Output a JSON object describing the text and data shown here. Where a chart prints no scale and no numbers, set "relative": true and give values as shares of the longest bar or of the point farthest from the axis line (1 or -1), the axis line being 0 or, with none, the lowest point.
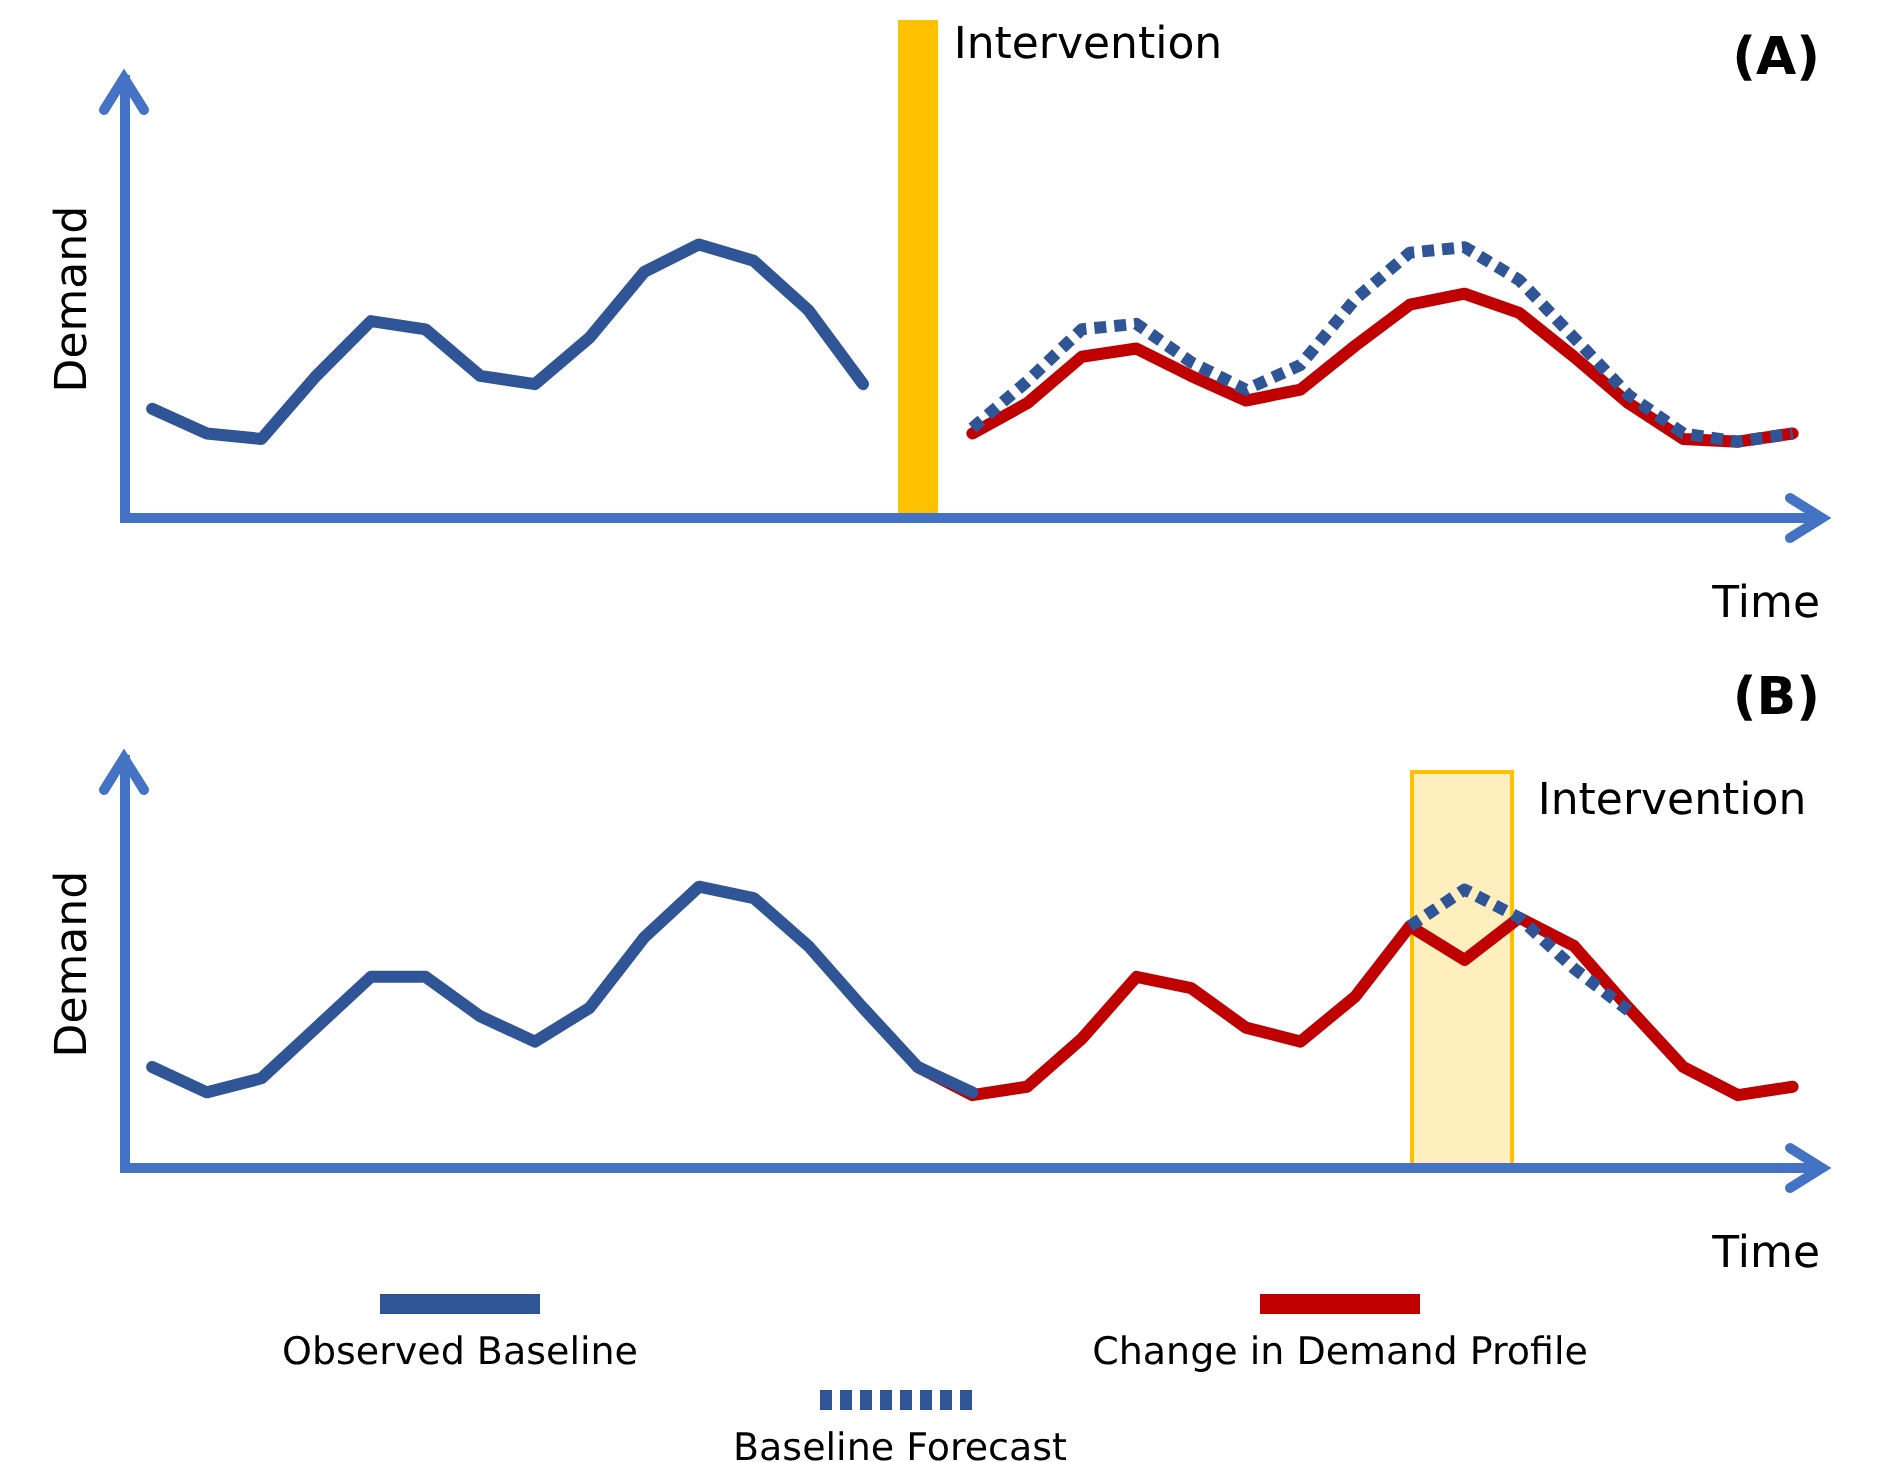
{
  "chart_data": [
    {
      "type": "line",
      "title": "(A)",
      "xlabel": "Time",
      "ylabel": "Demand",
      "relative": true,
      "grid": false,
      "marker": "none",
      "legend": false,
      "categories": [
        null,
        null,
        null,
        null,
        null,
        null,
        null,
        null,
        null,
        null,
        null,
        null,
        null,
        null,
        null,
        null,
        null,
        null,
        null,
        null,
        null,
        null,
        null,
        null,
        null,
        null,
        null,
        null,
        null,
        null,
        null
      ],
      "annotations": [
        "Intervention"
      ],
      "series": [
        {
          "color": "#2f5597",
          "line_style": "dotted",
          "values": [
            null,
            null,
            null,
            null,
            null,
            null,
            null,
            null,
            null,
            null,
            null,
            null,
            null,
            null,
            null,
            0.33,
            0.5,
            0.69,
            0.71,
            0.57,
            0.47,
            0.56,
            0.8,
            0.97,
            0.99,
            0.87,
            0.66,
            0.45,
            0.31,
            0.28,
            0.31
          ]
        },
        {
          "color": "#2f5597",
          "values": [
            0.4,
            0.31,
            0.29,
            0.52,
            0.72,
            0.69,
            0.52,
            0.49,
            0.66,
            0.9,
            1,
            0.94,
            0.76,
            0.49,
            null,
            null,
            null,
            null,
            null,
            null,
            null,
            null,
            null,
            null,
            null,
            null,
            null,
            null,
            null,
            null,
            null
          ]
        },
        {
          "color": "#c00000",
          "values": [
            null,
            null,
            null,
            null,
            null,
            null,
            null,
            null,
            null,
            null,
            null,
            null,
            null,
            null,
            null,
            0.31,
            0.42,
            0.59,
            0.62,
            0.52,
            0.43,
            0.47,
            0.63,
            0.78,
            0.82,
            0.75,
            0.59,
            0.42,
            0.29,
            0.28,
            0.31
          ]
        }
      ]
    },
    {
      "type": "line",
      "title": "(B)",
      "xlabel": "Time",
      "ylabel": "Demand",
      "relative": true,
      "grid": false,
      "marker": "none",
      "legend": "bottom",
      "categories": [
        null,
        null,
        null,
        null,
        null,
        null,
        null,
        null,
        null,
        null,
        null,
        null,
        null,
        null,
        null,
        null,
        null,
        null,
        null,
        null,
        null,
        null,
        null,
        null,
        null,
        null,
        null,
        null,
        null,
        null,
        null
      ],
      "annotations": [
        "Intervention"
      ],
      "series": [
        {
          "name": "Baseline Forecast",
          "color": "#2f5597",
          "line_style": "dotted",
          "values": [
            null,
            null,
            null,
            null,
            null,
            null,
            null,
            null,
            null,
            null,
            null,
            null,
            null,
            null,
            null,
            null,
            null,
            null,
            null,
            null,
            null,
            null,
            null,
            0.86,
            0.99,
            0.89,
            0.71,
            0.56,
            null,
            null,
            null
          ]
        },
        {
          "name": "Observed Baseline",
          "color": "#2f5597",
          "values": [
            0.36,
            0.27,
            0.32,
            0.5,
            0.68,
            0.68,
            0.54,
            0.45,
            0.57,
            0.82,
            1,
            0.96,
            0.79,
            0.57,
            0.36,
            0.27,
            null,
            null,
            null,
            null,
            null,
            null,
            null,
            null,
            null,
            null,
            null,
            null,
            null,
            null,
            null
          ]
        },
        {
          "name": "Change in Demand Profile",
          "color": "#c00000",
          "values": [
            null,
            null,
            null,
            null,
            null,
            null,
            null,
            null,
            null,
            null,
            null,
            null,
            null,
            null,
            0.36,
            0.26,
            0.29,
            0.46,
            0.68,
            0.64,
            0.5,
            0.45,
            0.61,
            0.86,
            0.74,
            0.89,
            0.79,
            0.57,
            0.36,
            0.26,
            0.29
          ]
        }
      ]
    }
  ]
}
